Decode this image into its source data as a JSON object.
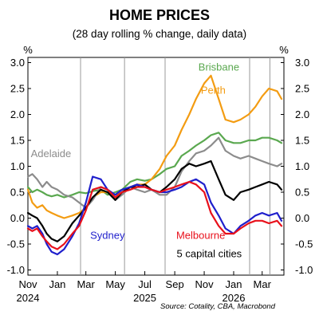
{
  "chart_data": {
    "type": "line",
    "title": "HOME PRICES",
    "subtitle": "(28 day rolling % change, daily data)",
    "ylabel_left": "%",
    "ylabel_right": "%",
    "ylim": [
      -1.1,
      3.1
    ],
    "yticks": [
      {
        "value": 3.0,
        "label": "3.0"
      },
      {
        "value": 2.5,
        "label": "2.5"
      },
      {
        "value": 2.0,
        "label": "2.0"
      },
      {
        "value": 1.5,
        "label": "1.5"
      },
      {
        "value": 1.0,
        "label": "1.0"
      },
      {
        "value": 0.5,
        "label": "0.5"
      },
      {
        "value": 0.0,
        "label": "0.0"
      },
      {
        "value": -0.5,
        "label": "-0.5"
      },
      {
        "value": -1.0,
        "label": "-1.0"
      }
    ],
    "xlim": [
      "2024-11-01",
      "2026-04-15"
    ],
    "xticks": [
      {
        "date": "2024-11-01",
        "label": "Nov",
        "year": "2024"
      },
      {
        "date": "2025-01-01",
        "label": "Jan",
        "year": ""
      },
      {
        "date": "2025-03-01",
        "label": "Mar",
        "year": ""
      },
      {
        "date": "2025-05-01",
        "label": "May",
        "year": ""
      },
      {
        "date": "2025-07-01",
        "label": "Jul",
        "year": "2025"
      },
      {
        "date": "2025-09-01",
        "label": "Sep",
        "year": ""
      },
      {
        "date": "2025-11-01",
        "label": "Nov",
        "year": ""
      },
      {
        "date": "2026-01-01",
        "label": "Jan",
        "year": "2026"
      },
      {
        "date": "2026-03-01",
        "label": "Mar",
        "year": ""
      }
    ],
    "vlines": [
      "2025-02-18",
      "2025-05-20",
      "2025-08-12",
      "2026-02-03",
      "2026-03-17"
    ],
    "grid": false,
    "annotation": "5 capital cities",
    "source": "Source: Cotality, CBA, Macrobond",
    "series": [
      {
        "name": "Brisbane",
        "color": "#5aa84f",
        "points": [
          [
            "2024-11-01",
            0.6
          ],
          [
            "2024-11-10",
            0.5
          ],
          [
            "2024-11-20",
            0.55
          ],
          [
            "2024-12-01",
            0.5
          ],
          [
            "2024-12-10",
            0.45
          ],
          [
            "2024-12-20",
            0.42
          ],
          [
            "2025-01-01",
            0.45
          ],
          [
            "2025-01-15",
            0.4
          ],
          [
            "2025-02-01",
            0.45
          ],
          [
            "2025-02-15",
            0.5
          ],
          [
            "2025-03-01",
            0.48
          ],
          [
            "2025-03-15",
            0.52
          ],
          [
            "2025-04-01",
            0.55
          ],
          [
            "2025-04-15",
            0.45
          ],
          [
            "2025-05-01",
            0.5
          ],
          [
            "2025-05-15",
            0.55
          ],
          [
            "2025-06-01",
            0.7
          ],
          [
            "2025-06-15",
            0.75
          ],
          [
            "2025-07-01",
            0.72
          ],
          [
            "2025-07-15",
            0.75
          ],
          [
            "2025-08-01",
            0.85
          ],
          [
            "2025-08-15",
            0.95
          ],
          [
            "2025-09-01",
            1.0
          ],
          [
            "2025-09-15",
            1.2
          ],
          [
            "2025-10-01",
            1.3
          ],
          [
            "2025-10-15",
            1.4
          ],
          [
            "2025-11-01",
            1.5
          ],
          [
            "2025-11-15",
            1.6
          ],
          [
            "2025-12-01",
            1.65
          ],
          [
            "2025-12-15",
            1.5
          ],
          [
            "2026-01-01",
            1.45
          ],
          [
            "2026-01-15",
            1.45
          ],
          [
            "2026-02-01",
            1.5
          ],
          [
            "2026-02-15",
            1.5
          ],
          [
            "2026-03-01",
            1.55
          ],
          [
            "2026-03-15",
            1.55
          ],
          [
            "2026-04-01",
            1.5
          ],
          [
            "2026-04-10",
            1.45
          ]
        ]
      },
      {
        "name": "Perth",
        "color": "#f39c12",
        "points": [
          [
            "2024-11-01",
            0.55
          ],
          [
            "2024-11-10",
            0.3
          ],
          [
            "2024-11-20",
            0.2
          ],
          [
            "2024-12-01",
            0.25
          ],
          [
            "2024-12-10",
            0.15
          ],
          [
            "2024-12-20",
            0.1
          ],
          [
            "2025-01-01",
            0.05
          ],
          [
            "2025-01-15",
            0.0
          ],
          [
            "2025-02-01",
            0.05
          ],
          [
            "2025-02-15",
            0.1
          ],
          [
            "2025-03-01",
            0.2
          ],
          [
            "2025-03-15",
            0.4
          ],
          [
            "2025-04-01",
            0.5
          ],
          [
            "2025-04-15",
            0.5
          ],
          [
            "2025-05-01",
            0.45
          ],
          [
            "2025-05-15",
            0.5
          ],
          [
            "2025-06-01",
            0.6
          ],
          [
            "2025-06-15",
            0.65
          ],
          [
            "2025-07-01",
            0.65
          ],
          [
            "2025-07-15",
            0.75
          ],
          [
            "2025-08-01",
            0.95
          ],
          [
            "2025-08-15",
            1.2
          ],
          [
            "2025-09-01",
            1.4
          ],
          [
            "2025-09-15",
            1.7
          ],
          [
            "2025-10-01",
            2.0
          ],
          [
            "2025-10-15",
            2.3
          ],
          [
            "2025-11-01",
            2.6
          ],
          [
            "2025-11-15",
            2.75
          ],
          [
            "2025-12-01",
            2.3
          ],
          [
            "2025-12-15",
            1.9
          ],
          [
            "2026-01-01",
            1.85
          ],
          [
            "2026-01-15",
            1.9
          ],
          [
            "2026-02-01",
            2.0
          ],
          [
            "2026-02-15",
            2.15
          ],
          [
            "2026-03-01",
            2.35
          ],
          [
            "2026-03-15",
            2.5
          ],
          [
            "2026-04-01",
            2.45
          ],
          [
            "2026-04-10",
            2.3
          ]
        ]
      },
      {
        "name": "Adelaide",
        "color": "#8c8c8c",
        "points": [
          [
            "2024-11-01",
            0.8
          ],
          [
            "2024-11-10",
            0.85
          ],
          [
            "2024-11-20",
            0.75
          ],
          [
            "2024-12-01",
            0.6
          ],
          [
            "2024-12-10",
            0.7
          ],
          [
            "2024-12-20",
            0.6
          ],
          [
            "2025-01-01",
            0.55
          ],
          [
            "2025-01-15",
            0.45
          ],
          [
            "2025-02-01",
            0.4
          ],
          [
            "2025-02-15",
            0.3
          ],
          [
            "2025-03-01",
            0.2
          ],
          [
            "2025-03-15",
            0.35
          ],
          [
            "2025-04-01",
            0.6
          ],
          [
            "2025-04-15",
            0.55
          ],
          [
            "2025-05-01",
            0.35
          ],
          [
            "2025-05-15",
            0.45
          ],
          [
            "2025-06-01",
            0.6
          ],
          [
            "2025-06-15",
            0.55
          ],
          [
            "2025-07-01",
            0.5
          ],
          [
            "2025-07-15",
            0.55
          ],
          [
            "2025-08-01",
            0.45
          ],
          [
            "2025-08-15",
            0.45
          ],
          [
            "2025-09-01",
            0.6
          ],
          [
            "2025-09-15",
            0.9
          ],
          [
            "2025-10-01",
            1.1
          ],
          [
            "2025-10-15",
            1.25
          ],
          [
            "2025-11-01",
            1.3
          ],
          [
            "2025-11-15",
            1.4
          ],
          [
            "2025-12-01",
            1.55
          ],
          [
            "2025-12-15",
            1.3
          ],
          [
            "2026-01-01",
            1.2
          ],
          [
            "2026-01-15",
            1.15
          ],
          [
            "2026-02-01",
            1.2
          ],
          [
            "2026-02-15",
            1.15
          ],
          [
            "2026-03-01",
            1.1
          ],
          [
            "2026-03-15",
            1.05
          ],
          [
            "2026-04-01",
            1.0
          ],
          [
            "2026-04-10",
            1.05
          ]
        ]
      },
      {
        "name": "5 capital cities",
        "color": "#000000",
        "points": [
          [
            "2024-11-01",
            0.1
          ],
          [
            "2024-11-10",
            0.05
          ],
          [
            "2024-11-20",
            0.0
          ],
          [
            "2024-12-01",
            -0.15
          ],
          [
            "2024-12-10",
            -0.3
          ],
          [
            "2024-12-20",
            -0.4
          ],
          [
            "2025-01-01",
            -0.45
          ],
          [
            "2025-01-15",
            -0.35
          ],
          [
            "2025-02-01",
            -0.1
          ],
          [
            "2025-02-15",
            0.05
          ],
          [
            "2025-03-01",
            0.2
          ],
          [
            "2025-03-15",
            0.4
          ],
          [
            "2025-04-01",
            0.55
          ],
          [
            "2025-04-15",
            0.5
          ],
          [
            "2025-05-01",
            0.35
          ],
          [
            "2025-05-15",
            0.5
          ],
          [
            "2025-06-01",
            0.6
          ],
          [
            "2025-06-15",
            0.6
          ],
          [
            "2025-07-01",
            0.65
          ],
          [
            "2025-07-15",
            0.55
          ],
          [
            "2025-08-01",
            0.5
          ],
          [
            "2025-08-15",
            0.6
          ],
          [
            "2025-09-01",
            0.75
          ],
          [
            "2025-09-15",
            0.95
          ],
          [
            "2025-10-01",
            1.05
          ],
          [
            "2025-10-15",
            1.0
          ],
          [
            "2025-11-01",
            1.05
          ],
          [
            "2025-11-15",
            1.1
          ],
          [
            "2025-12-01",
            0.75
          ],
          [
            "2025-12-15",
            0.45
          ],
          [
            "2026-01-01",
            0.35
          ],
          [
            "2026-01-15",
            0.5
          ],
          [
            "2026-02-01",
            0.55
          ],
          [
            "2026-02-15",
            0.6
          ],
          [
            "2026-03-01",
            0.65
          ],
          [
            "2026-03-15",
            0.7
          ],
          [
            "2026-04-01",
            0.65
          ],
          [
            "2026-04-10",
            0.55
          ]
        ]
      },
      {
        "name": "Sydney",
        "color": "#1f1fcc",
        "points": [
          [
            "2024-11-01",
            -0.15
          ],
          [
            "2024-11-10",
            -0.2
          ],
          [
            "2024-11-20",
            -0.15
          ],
          [
            "2024-12-01",
            -0.3
          ],
          [
            "2024-12-10",
            -0.5
          ],
          [
            "2024-12-20",
            -0.65
          ],
          [
            "2025-01-01",
            -0.7
          ],
          [
            "2025-01-15",
            -0.6
          ],
          [
            "2025-02-01",
            -0.35
          ],
          [
            "2025-02-15",
            -0.1
          ],
          [
            "2025-03-01",
            0.3
          ],
          [
            "2025-03-15",
            0.8
          ],
          [
            "2025-04-01",
            0.75
          ],
          [
            "2025-04-15",
            0.55
          ],
          [
            "2025-05-01",
            0.45
          ],
          [
            "2025-05-15",
            0.55
          ],
          [
            "2025-06-01",
            0.6
          ],
          [
            "2025-06-15",
            0.65
          ],
          [
            "2025-07-01",
            0.6
          ],
          [
            "2025-07-15",
            0.55
          ],
          [
            "2025-08-01",
            0.5
          ],
          [
            "2025-08-15",
            0.5
          ],
          [
            "2025-09-01",
            0.55
          ],
          [
            "2025-09-15",
            0.6
          ],
          [
            "2025-10-01",
            0.7
          ],
          [
            "2025-10-15",
            0.75
          ],
          [
            "2025-11-01",
            0.65
          ],
          [
            "2025-11-15",
            0.3
          ],
          [
            "2025-12-01",
            0.05
          ],
          [
            "2025-12-15",
            -0.2
          ],
          [
            "2026-01-01",
            -0.3
          ],
          [
            "2026-01-15",
            -0.15
          ],
          [
            "2026-02-01",
            -0.05
          ],
          [
            "2026-02-15",
            0.05
          ],
          [
            "2026-03-01",
            0.1
          ],
          [
            "2026-03-15",
            0.05
          ],
          [
            "2026-04-01",
            0.1
          ],
          [
            "2026-04-10",
            -0.05
          ]
        ]
      },
      {
        "name": "Melbourne",
        "color": "#e8101b",
        "points": [
          [
            "2024-11-01",
            -0.2
          ],
          [
            "2024-11-10",
            -0.25
          ],
          [
            "2024-11-20",
            -0.2
          ],
          [
            "2024-12-01",
            -0.35
          ],
          [
            "2024-12-10",
            -0.45
          ],
          [
            "2024-12-20",
            -0.55
          ],
          [
            "2025-01-01",
            -0.6
          ],
          [
            "2025-01-15",
            -0.5
          ],
          [
            "2025-02-01",
            -0.3
          ],
          [
            "2025-02-15",
            -0.15
          ],
          [
            "2025-03-01",
            0.15
          ],
          [
            "2025-03-15",
            0.55
          ],
          [
            "2025-04-01",
            0.6
          ],
          [
            "2025-04-15",
            0.55
          ],
          [
            "2025-05-01",
            0.4
          ],
          [
            "2025-05-15",
            0.5
          ],
          [
            "2025-06-01",
            0.55
          ],
          [
            "2025-06-15",
            0.6
          ],
          [
            "2025-07-01",
            0.6
          ],
          [
            "2025-07-15",
            0.55
          ],
          [
            "2025-08-01",
            0.5
          ],
          [
            "2025-08-15",
            0.55
          ],
          [
            "2025-09-01",
            0.6
          ],
          [
            "2025-09-15",
            0.65
          ],
          [
            "2025-10-01",
            0.7
          ],
          [
            "2025-10-15",
            0.65
          ],
          [
            "2025-11-01",
            0.5
          ],
          [
            "2025-11-15",
            0.1
          ],
          [
            "2025-12-01",
            -0.15
          ],
          [
            "2025-12-15",
            -0.3
          ],
          [
            "2026-01-01",
            -0.3
          ],
          [
            "2026-01-15",
            -0.2
          ],
          [
            "2026-02-01",
            -0.1
          ],
          [
            "2026-02-15",
            -0.05
          ],
          [
            "2026-03-01",
            -0.05
          ],
          [
            "2026-03-15",
            -0.1
          ],
          [
            "2026-04-01",
            -0.05
          ],
          [
            "2026-04-10",
            -0.15
          ]
        ]
      }
    ],
    "series_labels": [
      {
        "name": "Brisbane",
        "color": "#5aa84f",
        "at": [
          "2025-10-20",
          2.85
        ]
      },
      {
        "name": "Perth",
        "color": "#f39c12",
        "at": [
          "2025-10-25",
          2.4
        ]
      },
      {
        "name": "Adelaide",
        "color": "#8c8c8c",
        "at": [
          "2024-11-07",
          1.18
        ]
      },
      {
        "name": "Sydney",
        "color": "#1f1fcc",
        "at": [
          "2025-03-10",
          -0.4
        ]
      },
      {
        "name": "Melbourne",
        "color": "#e8101b",
        "at": [
          "2025-09-04",
          -0.4
        ]
      }
    ],
    "annotation_at": [
      "2025-09-05",
      -0.75
    ]
  }
}
